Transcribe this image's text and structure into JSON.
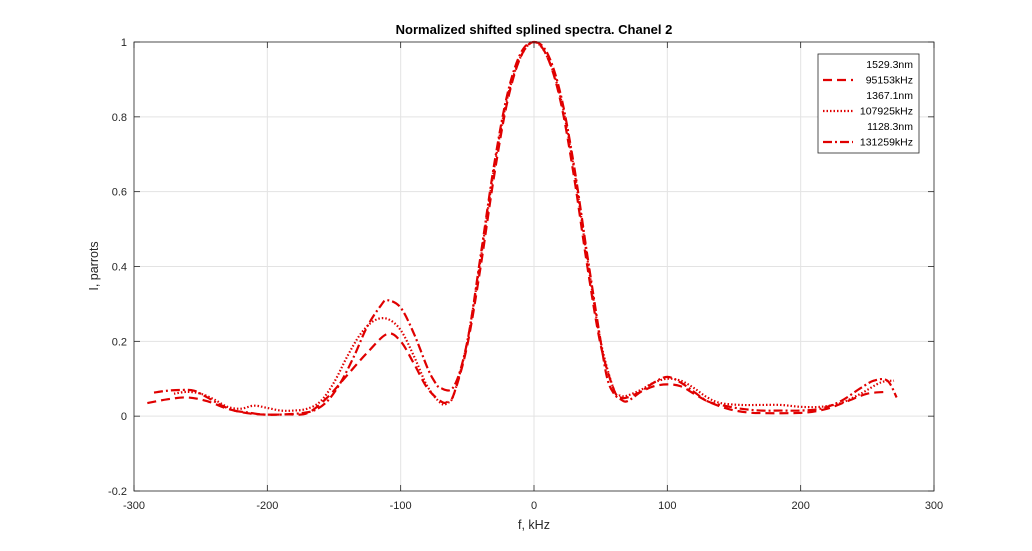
{
  "chart_data": {
    "type": "line",
    "title": "Normalized shifted splined spectra. Chanel 2",
    "xlabel": "f, kHz",
    "ylabel": "I, parrots",
    "xlim": [
      -300,
      300
    ],
    "ylim": [
      -0.2,
      1
    ],
    "xticks": [
      -300,
      -200,
      -100,
      0,
      100,
      200,
      300
    ],
    "yticks": [
      -0.2,
      0,
      0.2,
      0.4,
      0.6,
      0.8,
      1
    ],
    "xtick_labels": [
      "-300",
      "-200",
      "-100",
      "0",
      "100",
      "200",
      "300"
    ],
    "ytick_labels": [
      "-0.2",
      "0",
      "0.2",
      "0.4",
      "0.6",
      "0.8",
      "1"
    ],
    "grid": true,
    "legend_position": "top-right",
    "line_color": "#e00000",
    "series": [
      {
        "name": "1529.3nm 95153kHz",
        "label_lines": [
          "1529.3nm",
          "95153kHz"
        ],
        "style": "dashed",
        "x": [
          -290,
          -275,
          -260,
          -245,
          -230,
          -215,
          -200,
          -185,
          -170,
          -155,
          -140,
          -125,
          -110,
          -100,
          -90,
          -80,
          -70,
          -65,
          -60,
          -50,
          -40,
          -30,
          -20,
          -10,
          0,
          10,
          20,
          30,
          40,
          50,
          60,
          65,
          70,
          80,
          90,
          100,
          110,
          120,
          130,
          145,
          160,
          175,
          190,
          205,
          220,
          235,
          250,
          265
        ],
        "y": [
          0.035,
          0.045,
          0.05,
          0.04,
          0.02,
          0.008,
          0.004,
          0.005,
          0.008,
          0.05,
          0.11,
          0.17,
          0.22,
          0.2,
          0.14,
          0.075,
          0.04,
          0.038,
          0.06,
          0.19,
          0.4,
          0.64,
          0.84,
          0.96,
          1.0,
          0.96,
          0.84,
          0.64,
          0.4,
          0.19,
          0.07,
          0.05,
          0.05,
          0.065,
          0.08,
          0.085,
          0.08,
          0.06,
          0.04,
          0.02,
          0.01,
          0.008,
          0.008,
          0.01,
          0.02,
          0.04,
          0.06,
          0.065
        ]
      },
      {
        "name": "1367.1nm 107925kHz",
        "label_lines": [
          "1367.1nm",
          "107925kHz"
        ],
        "style": "dotted",
        "x": [
          -270,
          -260,
          -250,
          -240,
          -230,
          -220,
          -210,
          -200,
          -190,
          -180,
          -170,
          -160,
          -150,
          -140,
          -130,
          -120,
          -110,
          -100,
          -90,
          -80,
          -70,
          -65,
          -60,
          -50,
          -40,
          -30,
          -20,
          -10,
          0,
          10,
          20,
          30,
          40,
          50,
          60,
          65,
          70,
          80,
          90,
          100,
          110,
          120,
          130,
          140,
          155,
          170,
          185,
          200,
          215,
          230,
          245,
          260,
          270
        ],
        "y": [
          0.06,
          0.065,
          0.06,
          0.045,
          0.025,
          0.02,
          0.028,
          0.022,
          0.015,
          0.015,
          0.02,
          0.04,
          0.09,
          0.16,
          0.22,
          0.255,
          0.26,
          0.23,
          0.16,
          0.08,
          0.035,
          0.035,
          0.06,
          0.2,
          0.42,
          0.66,
          0.85,
          0.96,
          1.0,
          0.96,
          0.85,
          0.66,
          0.42,
          0.2,
          0.07,
          0.055,
          0.055,
          0.07,
          0.09,
          0.1,
          0.095,
          0.075,
          0.05,
          0.035,
          0.03,
          0.03,
          0.03,
          0.025,
          0.025,
          0.035,
          0.06,
          0.09,
          0.095
        ]
      },
      {
        "name": "1128.3nm 131259kHz",
        "label_lines": [
          "1128.3nm",
          "131259kHz"
        ],
        "style": "dashdot",
        "x": [
          -285,
          -275,
          -265,
          -255,
          -245,
          -235,
          -225,
          -215,
          -205,
          -195,
          -185,
          -175,
          -165,
          -155,
          -145,
          -135,
          -125,
          -115,
          -110,
          -100,
          -90,
          -80,
          -75,
          -70,
          -60,
          -50,
          -40,
          -30,
          -20,
          -10,
          0,
          10,
          20,
          30,
          40,
          50,
          55,
          60,
          65,
          70,
          80,
          90,
          100,
          110,
          120,
          130,
          140,
          155,
          170,
          185,
          200,
          215,
          230,
          245,
          255,
          265,
          272
        ],
        "y": [
          0.063,
          0.068,
          0.07,
          0.068,
          0.05,
          0.03,
          0.015,
          0.01,
          0.005,
          0.004,
          0.005,
          0.008,
          0.015,
          0.04,
          0.09,
          0.16,
          0.24,
          0.295,
          0.31,
          0.29,
          0.22,
          0.13,
          0.095,
          0.075,
          0.08,
          0.2,
          0.43,
          0.67,
          0.86,
          0.97,
          1.0,
          0.97,
          0.86,
          0.67,
          0.43,
          0.2,
          0.1,
          0.06,
          0.045,
          0.04,
          0.065,
          0.09,
          0.105,
          0.09,
          0.065,
          0.04,
          0.03,
          0.02,
          0.015,
          0.015,
          0.015,
          0.02,
          0.04,
          0.075,
          0.095,
          0.095,
          0.05
        ]
      }
    ]
  }
}
